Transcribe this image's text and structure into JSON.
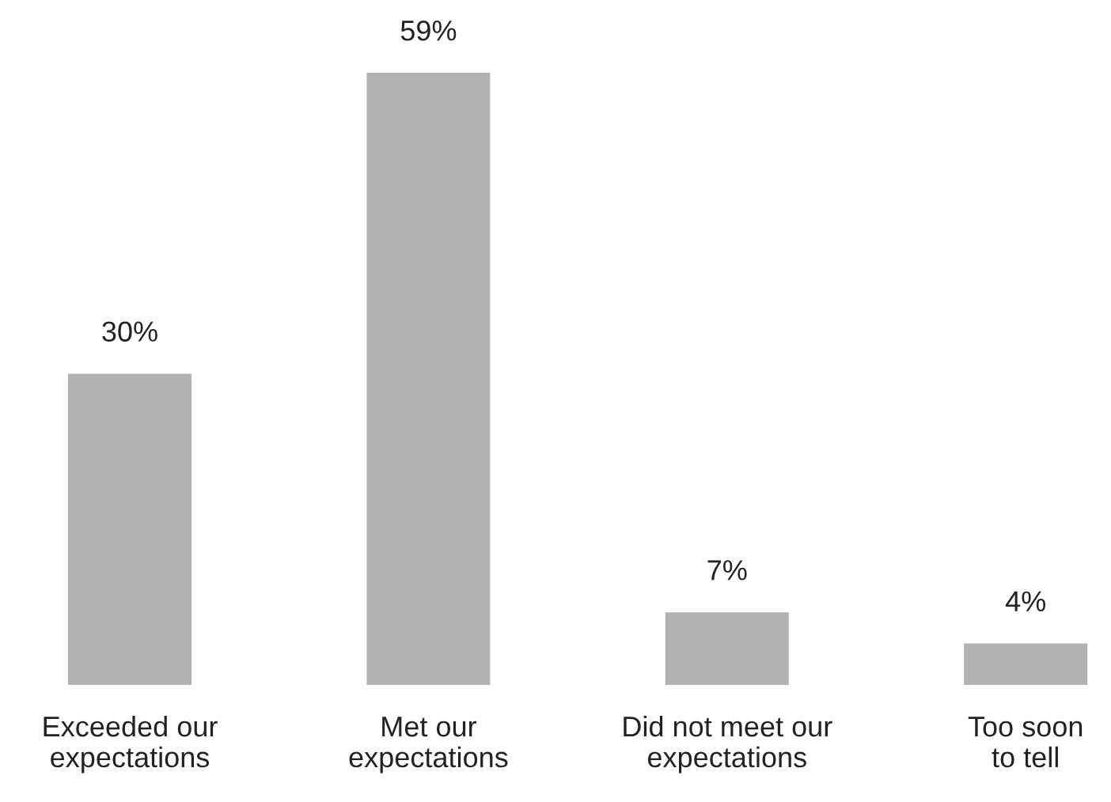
{
  "chart_data": {
    "type": "bar",
    "categories": [
      "Exceeded our\nexpectations",
      "Met our\nexpectations",
      "Did not meet our\nexpectations",
      "Too soon\nto tell"
    ],
    "values": [
      30,
      59,
      7,
      4
    ],
    "value_labels": [
      "30%",
      "59%",
      "7%",
      "4%"
    ],
    "color": "#b2b2b2",
    "grid": false,
    "legend": false
  }
}
